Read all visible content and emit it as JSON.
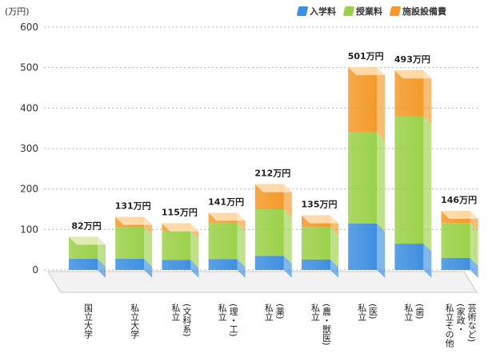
{
  "chart_data": {
    "type": "bar",
    "stacked": true,
    "unit": "(万円)",
    "ylim": [
      0,
      600
    ],
    "yticks": [
      0,
      100,
      200,
      300,
      400,
      500,
      600
    ],
    "grid": true,
    "legend_position": "top-right",
    "categories": [
      [
        "国立大学"
      ],
      [
        "私立大学"
      ],
      [
        "私立",
        "(文科系)"
      ],
      [
        "私立",
        "(理・工)"
      ],
      [
        "私立",
        "(薬)"
      ],
      [
        "私立",
        "(農・獣医)"
      ],
      [
        "私立",
        "(医)"
      ],
      [
        "私立",
        "(歯)"
      ],
      [
        "私立その他",
        "(家政・",
        "芸術など)"
      ]
    ],
    "totals_labels": [
      "82万円",
      "131万円",
      "115万円",
      "141万円",
      "212万円",
      "135万円",
      "501万円",
      "493万円",
      "146万円"
    ],
    "series": [
      {
        "name": "入学料",
        "color": "#3f8fe0",
        "values": [
          28,
          28,
          25,
          27,
          35,
          26,
          115,
          65,
          30
        ]
      },
      {
        "name": "授業料",
        "color": "#9bd14a",
        "values": [
          54,
          78,
          72,
          90,
          115,
          80,
          225,
          315,
          86
        ]
      },
      {
        "name": "施設設備費",
        "color": "#f39a2a",
        "values": [
          0,
          25,
          18,
          24,
          62,
          29,
          161,
          113,
          30
        ]
      }
    ]
  }
}
